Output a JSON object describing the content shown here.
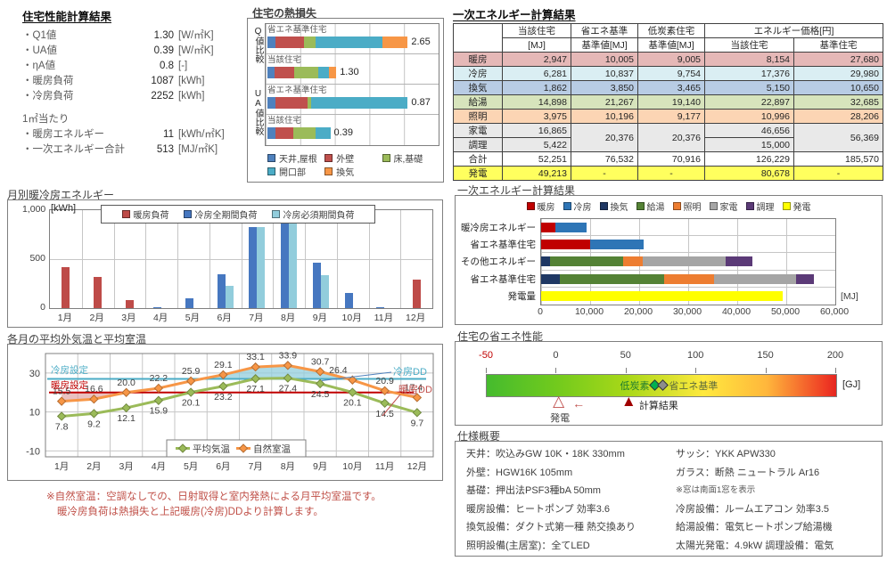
{
  "summary": {
    "title": "住宅性能計算結果",
    "rows": [
      {
        "label": "・Q1値",
        "value": "1.30",
        "unit": "[W/㎡K]"
      },
      {
        "label": "・UA値",
        "value": "0.39",
        "unit": "[W/㎡K]"
      },
      {
        "label": "・ηA値",
        "value": "0.8",
        "unit": "[-]"
      },
      {
        "label": "・暖房負荷",
        "value": "1087",
        "unit": "[kWh]"
      },
      {
        "label": "・冷房負荷",
        "value": "2252",
        "unit": "[kWh]"
      }
    ],
    "subheader": "1㎡当たり",
    "rows2": [
      {
        "label": "・暖房エネルギー",
        "value": "11",
        "unit": "[kWh/㎡K]"
      },
      {
        "label": "・一次エネルギー合計",
        "value": "513",
        "unit": "[MJ/㎡K]"
      }
    ]
  },
  "energy_table": {
    "title": "一次エネルギー計算結果",
    "header": {
      "col1": "当該住宅",
      "col1b": "[MJ]",
      "col2": "省エネ基準",
      "col2b": "基準値[MJ]",
      "col3": "低炭素住宅",
      "col3b": "基準値[MJ]",
      "price": "エネルギー価格[円]",
      "price1": "当該住宅",
      "price2": "基準住宅"
    },
    "rows": [
      {
        "bg": "#E5B8B7",
        "cells": [
          {
            "t": "暖房"
          },
          {
            "t": "2,947"
          },
          {
            "t": "10,005"
          },
          {
            "t": "9,005"
          },
          {
            "t": "8,154"
          },
          {
            "t": "27,680"
          }
        ]
      },
      {
        "bg": "#DAEEF3",
        "cells": [
          {
            "t": "冷房"
          },
          {
            "t": "6,281"
          },
          {
            "t": "10,837"
          },
          {
            "t": "9,754"
          },
          {
            "t": "17,376"
          },
          {
            "t": "29,980"
          }
        ]
      },
      {
        "bg": "#B8CCE4",
        "cells": [
          {
            "t": "換気"
          },
          {
            "t": "1,862"
          },
          {
            "t": "3,850"
          },
          {
            "t": "3,465"
          },
          {
            "t": "5,150"
          },
          {
            "t": "10,650"
          }
        ]
      },
      {
        "bg": "#D7E4BC",
        "cells": [
          {
            "t": "給湯"
          },
          {
            "t": "14,898"
          },
          {
            "t": "21,267"
          },
          {
            "t": "19,140"
          },
          {
            "t": "22,897"
          },
          {
            "t": "32,685"
          }
        ]
      },
      {
        "bg": "#FCD5B4",
        "cells": [
          {
            "t": "照明"
          },
          {
            "t": "3,975"
          },
          {
            "t": "10,196"
          },
          {
            "t": "9,177"
          },
          {
            "t": "10,996"
          },
          {
            "t": "28,206"
          }
        ]
      },
      {
        "bg": "#E9E9E9",
        "cells": [
          {
            "t": "家電"
          },
          {
            "t": "16,865"
          },
          {
            "t": "20,376",
            "rs": 2
          },
          {
            "t": "20,376",
            "rs": 2
          },
          {
            "t": "46,656"
          },
          {
            "t": "56,369",
            "rs": 2
          }
        ]
      },
      {
        "bg": "#E9E9E9",
        "cells": [
          {
            "t": "調理"
          },
          {
            "t": "5,422"
          },
          {
            "t": "15,000"
          }
        ]
      },
      {
        "bg": "#FFFFFF",
        "cells": [
          {
            "t": "合計"
          },
          {
            "t": "52,251"
          },
          {
            "t": "76,532"
          },
          {
            "t": "70,916"
          },
          {
            "t": "126,229"
          },
          {
            "t": "185,570"
          }
        ]
      },
      {
        "bg": "#FFFF5E",
        "cells": [
          {
            "t": "発電"
          },
          {
            "t": "49,213"
          },
          {
            "t": "-"
          },
          {
            "t": "-"
          },
          {
            "t": "80,678"
          },
          {
            "t": "-"
          }
        ]
      }
    ]
  },
  "chart_data": [
    {
      "type": "bar",
      "title": "住宅の熱損失",
      "legend": [
        {
          "label": "天井,屋根",
          "color": "#4F81BD"
        },
        {
          "label": "外壁",
          "color": "#C0504D"
        },
        {
          "label": "床,基礎",
          "color": "#9BBB59"
        },
        {
          "label": "開口部",
          "color": "#4BACC6"
        },
        {
          "label": "換気",
          "color": "#F79646"
        }
      ],
      "groups": [
        {
          "axis": "Q値比較",
          "scale": 3.2,
          "bars": [
            {
              "name": "省エネ基準住宅",
              "total": "2.65",
              "segments": [
                0.15,
                0.54,
                0.22,
                1.27,
                0.47
              ]
            },
            {
              "name": "当該住宅",
              "total": "1.30",
              "segments": [
                0.13,
                0.37,
                0.46,
                0.21,
                0.13
              ]
            }
          ]
        },
        {
          "axis": "UA値比較",
          "scale": 1.05,
          "bars": [
            {
              "name": "省エネ基準住宅",
              "total": "0.87",
              "segments": [
                0.05,
                0.2,
                0.02,
                0.6,
                0
              ]
            },
            {
              "name": "当該住宅",
              "total": "0.39",
              "segments": [
                0.05,
                0.11,
                0.14,
                0.09,
                0
              ]
            }
          ]
        }
      ]
    },
    {
      "type": "bar",
      "title": "月別暖冷房エネルギー",
      "unit": "[kWh]",
      "months": [
        "1月",
        "2月",
        "3月",
        "4月",
        "5月",
        "6月",
        "7月",
        "8月",
        "9月",
        "10月",
        "11月",
        "12月"
      ],
      "ymax": 1000,
      "yticks": [
        0,
        500,
        1000
      ],
      "series": [
        {
          "name": "暖房負荷",
          "color": "#BE4B48",
          "values": [
            420,
            320,
            85,
            0,
            0,
            0,
            0,
            0,
            0,
            0,
            0,
            290
          ]
        },
        {
          "name": "冷房全期間負荷",
          "color": "#4677C0",
          "values": [
            0,
            0,
            0,
            10,
            100,
            350,
            830,
            905,
            460,
            155,
            10,
            0
          ]
        },
        {
          "name": "冷房必須期間負荷",
          "color": "#92CDDC",
          "values": [
            0,
            0,
            0,
            0,
            0,
            230,
            825,
            900,
            335,
            0,
            0,
            0
          ]
        }
      ]
    },
    {
      "type": "bar",
      "title": "一次エネルギー計算結果",
      "orientation": "horizontal",
      "xmax": 60000,
      "xticks": [
        "0",
        "10,000",
        "20,000",
        "30,000",
        "40,000",
        "50,000",
        "60,000"
      ],
      "unit": "[MJ]",
      "legend": [
        {
          "key": "暖房",
          "color": "#C00000"
        },
        {
          "key": "冷房",
          "color": "#2E75B6"
        },
        {
          "key": "換気",
          "color": "#1F3864"
        },
        {
          "key": "給湯",
          "color": "#548235"
        },
        {
          "key": "照明",
          "color": "#ED7D31"
        },
        {
          "key": "家電",
          "color": "#A5A5A5"
        },
        {
          "key": "調理",
          "color": "#5B3A77"
        },
        {
          "key": "発電",
          "color": "#FFFF00"
        }
      ],
      "rows": [
        {
          "label": "暖冷房エネルギー",
          "segments": [
            {
              "key": "暖房",
              "value": 2947
            },
            {
              "key": "冷房",
              "value": 6281
            }
          ]
        },
        {
          "label": "省エネ基準住宅",
          "segments": [
            {
              "key": "暖房",
              "value": 10005
            },
            {
              "key": "冷房",
              "value": 10837
            }
          ]
        },
        {
          "label": "その他エネルギー",
          "segments": [
            {
              "key": "換気",
              "value": 1862
            },
            {
              "key": "給湯",
              "value": 14898
            },
            {
              "key": "照明",
              "value": 3975
            },
            {
              "key": "家電",
              "value": 16865
            },
            {
              "key": "調理",
              "value": 5422
            }
          ]
        },
        {
          "label": "省エネ基準住宅",
          "segments": [
            {
              "key": "換気",
              "value": 3850
            },
            {
              "key": "給湯",
              "value": 21267
            },
            {
              "key": "照明",
              "value": 10196
            },
            {
              "key": "家電",
              "value": 16687
            },
            {
              "key": "調理",
              "value": 3689
            }
          ]
        },
        {
          "label": "発電量",
          "segments": [
            {
              "key": "発電",
              "value": 49213
            }
          ]
        }
      ]
    },
    {
      "type": "gauge",
      "title": "住宅の省エネ性能",
      "min": -50,
      "max": 200,
      "ticks": [
        -50,
        0,
        50,
        100,
        150,
        200
      ],
      "unit": "[GJ]",
      "negative_tick_color": "#C00000",
      "zone_labels": [
        {
          "text": "低炭素",
          "value": 67,
          "align": "end",
          "color": "#1E7B2E"
        },
        {
          "text": "省エネ基準",
          "value": 81,
          "align": "start",
          "color": "#5E6B3B"
        }
      ],
      "diamonds": [
        {
          "value": 71,
          "color": "#00B050"
        },
        {
          "value": 76.5,
          "color": "#8C8C8C"
        }
      ],
      "markers": [
        {
          "label": "発電",
          "value": 3,
          "style": "outline",
          "color": "#C0504D"
        },
        {
          "label": "計算結果",
          "value": 52,
          "style": "filled",
          "color": "#A00000"
        }
      ]
    },
    {
      "type": "line",
      "title": "各月の平均外気温と平均室温",
      "months": [
        "1月",
        "2月",
        "3月",
        "4月",
        "5月",
        "6月",
        "7月",
        "8月",
        "9月",
        "10月",
        "11月",
        "12月"
      ],
      "yticks": [
        30,
        10,
        -10
      ],
      "series": [
        {
          "name": "平均気温",
          "color": "#9BBB59",
          "edge": "#71893F",
          "values": [
            7.8,
            9.2,
            12.1,
            15.9,
            20.1,
            23.2,
            27.1,
            27.4,
            24.5,
            20.1,
            14.5,
            9.7
          ],
          "labels": [
            "7.8",
            "9.2",
            "12.1",
            "15.9",
            "20.1",
            "23.2",
            "27.1",
            "27.4",
            "24.5",
            "20.1",
            "14.5",
            "9.7"
          ]
        },
        {
          "name": "自然室温",
          "color": "#F79646",
          "edge": "#B66D31",
          "values": [
            15.5,
            16.6,
            20.0,
            22.2,
            25.9,
            29.1,
            33.1,
            33.9,
            30.7,
            26.4,
            20.9,
            17.4
          ],
          "labels": [
            "15.5",
            "16.6",
            "20.0",
            "22.2",
            "25.9",
            "29.1",
            "33.1",
            "33.9",
            "30.7",
            "26.4",
            "20.9",
            "17.4"
          ]
        }
      ],
      "setpoints": {
        "cooling": {
          "label": "冷房設定",
          "value": 27,
          "color": "#4BACC6"
        },
        "heating": {
          "label": "暖房設定",
          "value": 20,
          "color": "#C00000"
        }
      },
      "dd_labels": {
        "cooling": {
          "text": "冷房DD",
          "color": "#4BACC6"
        },
        "heating": {
          "text": "暖房DD",
          "color": "#C0504D"
        }
      },
      "shade_colors": {
        "cooling": "rgba(146,205,220,0.75)",
        "heating": "rgba(223,160,158,0.65)"
      }
    }
  ],
  "notes": {
    "line1": "※自然室温：空調なしでの、日射取得と室内発熱による月平均室温です。",
    "line2": "暖冷房負荷は熱損失と上記暖房(冷房)DDより計算します。"
  },
  "spec": {
    "title": "仕様概要",
    "left": [
      "天井：吹込みGW 10K・18K 330mm",
      "外壁：HGW16K 105mm",
      "基礎：押出法PSF3種bA 50mm",
      "暖房設備：ヒートポンプ 効率3.6",
      "換気設備：ダクト式第一種 熱交換あり",
      "照明設備(主居室)：全てLED"
    ],
    "right": [
      "サッシ：YKK APW330",
      "ガラス：断熱 ニュートラル Ar16",
      "※窓は南面1窓を表示",
      "冷房設備：ルームエアコン 効率3.5",
      "給湯設備：電気ヒートポンプ給湯機",
      "太陽光発電：4.9kW 調理設備：電気"
    ]
  }
}
